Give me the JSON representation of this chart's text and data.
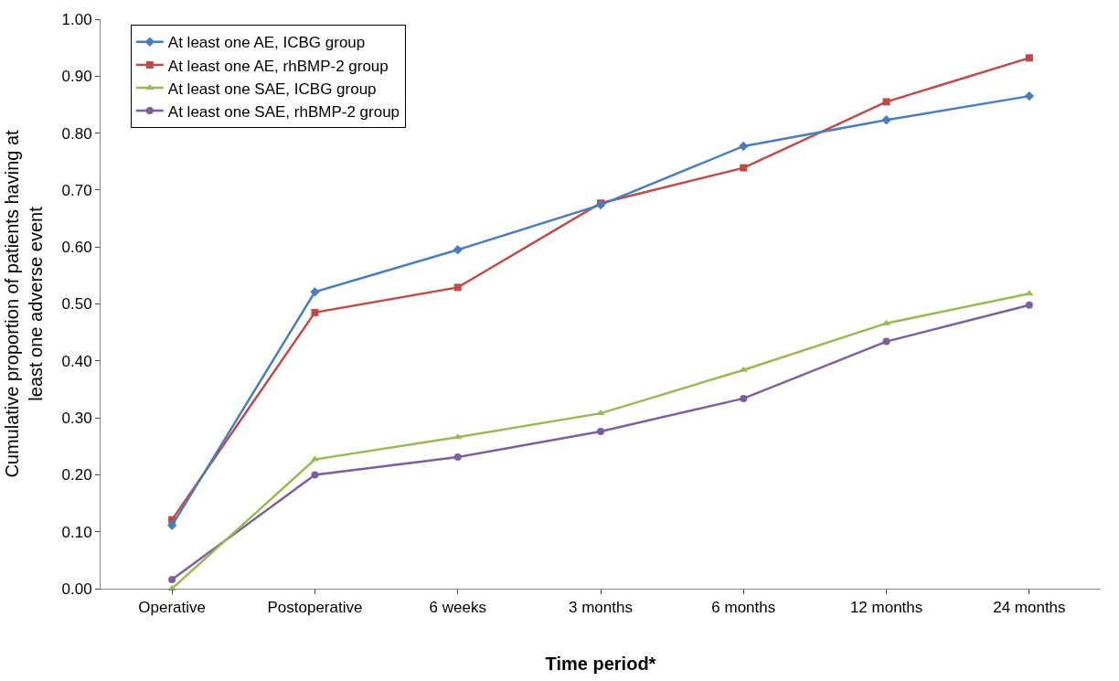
{
  "chart_data": {
    "type": "line",
    "xlabel": "Time period*",
    "ylabel": "Cumulative proportion of patients having at least one adverse event",
    "categories": [
      "Operative",
      "Postoperative",
      "6 weeks",
      "3 months",
      "6 months",
      "12 months",
      "24 months"
    ],
    "series": [
      {
        "name": "At least one AE, ICBG group",
        "color": "#4a7ebb",
        "marker": "diamond",
        "values": [
          0.111,
          0.521,
          0.595,
          0.674,
          0.777,
          0.823,
          0.865
        ]
      },
      {
        "name": "At least one AE, rhBMP-2 group",
        "color": "#be4b48",
        "marker": "square",
        "values": [
          0.121,
          0.485,
          0.529,
          0.677,
          0.739,
          0.855,
          0.932
        ]
      },
      {
        "name": "At least one SAE, ICBG group",
        "color": "#98b954",
        "marker": "triangle",
        "values": [
          0.0,
          0.227,
          0.266,
          0.308,
          0.384,
          0.466,
          0.518
        ]
      },
      {
        "name": "At least one SAE, rhBMP-2 group",
        "color": "#7d5fa0",
        "marker": "circle",
        "values": [
          0.016,
          0.2,
          0.231,
          0.276,
          0.334,
          0.434,
          0.498
        ]
      }
    ],
    "ylim": [
      0,
      1
    ],
    "yticks": [
      {
        "value": 0,
        "label": "0.00"
      },
      {
        "value": 0.1,
        "label": "0.10"
      },
      {
        "value": 0.2,
        "label": "0.20"
      },
      {
        "value": 0.3,
        "label": "0.30"
      },
      {
        "value": 0.4,
        "label": "0.40"
      },
      {
        "value": 0.5,
        "label": "0.50"
      },
      {
        "value": 0.6,
        "label": "0.60"
      },
      {
        "value": 0.7,
        "label": "0.70"
      },
      {
        "value": 0.8,
        "label": "0.80"
      },
      {
        "value": 0.9,
        "label": "0.90"
      },
      {
        "value": 1,
        "label": "1.00"
      }
    ],
    "grid": false,
    "legend": "top left",
    "line_style": "solid"
  }
}
